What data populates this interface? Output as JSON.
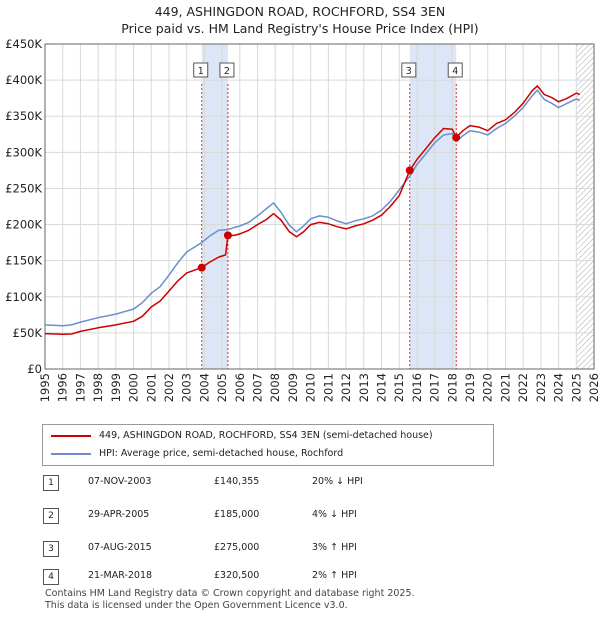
{
  "title_line1": "449, ASHINGDON ROAD, ROCHFORD, SS4 3EN",
  "title_line2": "Price paid vs. HM Land Registry's House Price Index (HPI)",
  "colors": {
    "price_line": "#cc0000",
    "hpi_line": "#6a8fce",
    "shade": "#dde6f7",
    "grid": "#d9d9d9",
    "marker": "#cc0000"
  },
  "chart_data": {
    "type": "line",
    "xlim": [
      1995,
      2026
    ],
    "ylim": [
      0,
      450000
    ],
    "y_ticks": [
      {
        "value": 0,
        "label": "£0"
      },
      {
        "value": 50000,
        "label": "£50K"
      },
      {
        "value": 100000,
        "label": "£100K"
      },
      {
        "value": 150000,
        "label": "£150K"
      },
      {
        "value": 200000,
        "label": "£200K"
      },
      {
        "value": 250000,
        "label": "£250K"
      },
      {
        "value": 300000,
        "label": "£300K"
      },
      {
        "value": 350000,
        "label": "£350K"
      },
      {
        "value": 400000,
        "label": "£400K"
      },
      {
        "value": 450000,
        "label": "£450K"
      }
    ],
    "x_ticks": [
      1995,
      1996,
      1997,
      1998,
      1999,
      2000,
      2001,
      2002,
      2003,
      2004,
      2005,
      2006,
      2007,
      2008,
      2009,
      2010,
      2011,
      2012,
      2013,
      2014,
      2015,
      2016,
      2017,
      2018,
      2019,
      2020,
      2021,
      2022,
      2023,
      2024,
      2025,
      2026
    ],
    "shaded_ranges": [
      [
        2003.85,
        2005.33
      ],
      [
        2015.6,
        2018.22
      ]
    ],
    "hatched_from": 2025.0,
    "series": [
      {
        "name": "449, ASHINGDON ROAD, ROCHFORD, SS4 3EN (semi-detached house)",
        "points": [
          [
            1995,
            49000
          ],
          [
            1996,
            48000
          ],
          [
            1996.5,
            48500
          ],
          [
            1997,
            52000
          ],
          [
            1998,
            57000
          ],
          [
            1999,
            61000
          ],
          [
            2000,
            66000
          ],
          [
            2000.5,
            73000
          ],
          [
            2001,
            86000
          ],
          [
            2001.5,
            94000
          ],
          [
            2002,
            108000
          ],
          [
            2002.5,
            122000
          ],
          [
            2003,
            133000
          ],
          [
            2003.85,
            140355
          ],
          [
            2004.3,
            148000
          ],
          [
            2004.8,
            155000
          ],
          [
            2005.2,
            158000
          ],
          [
            2005.33,
            185000
          ],
          [
            2005.7,
            185000
          ],
          [
            2006,
            187000
          ],
          [
            2006.5,
            192000
          ],
          [
            2007,
            200000
          ],
          [
            2007.5,
            207000
          ],
          [
            2007.9,
            215000
          ],
          [
            2008.3,
            207000
          ],
          [
            2008.8,
            190000
          ],
          [
            2009.2,
            183000
          ],
          [
            2009.6,
            190000
          ],
          [
            2010,
            200000
          ],
          [
            2010.5,
            203000
          ],
          [
            2011,
            201000
          ],
          [
            2011.5,
            197000
          ],
          [
            2012,
            194000
          ],
          [
            2012.5,
            198000
          ],
          [
            2013,
            201000
          ],
          [
            2013.5,
            206000
          ],
          [
            2014,
            213000
          ],
          [
            2014.5,
            225000
          ],
          [
            2015,
            240000
          ],
          [
            2015.6,
            275000
          ],
          [
            2016,
            290000
          ],
          [
            2016.5,
            305000
          ],
          [
            2017,
            320000
          ],
          [
            2017.5,
            333000
          ],
          [
            2018,
            332000
          ],
          [
            2018.22,
            320500
          ],
          [
            2018.6,
            330000
          ],
          [
            2019,
            337000
          ],
          [
            2019.5,
            335000
          ],
          [
            2020,
            330000
          ],
          [
            2020.5,
            340000
          ],
          [
            2021,
            345000
          ],
          [
            2021.5,
            355000
          ],
          [
            2022,
            368000
          ],
          [
            2022.5,
            385000
          ],
          [
            2022.8,
            392000
          ],
          [
            2023.2,
            380000
          ],
          [
            2023.6,
            376000
          ],
          [
            2024,
            370000
          ],
          [
            2024.5,
            375000
          ],
          [
            2025,
            382000
          ],
          [
            2025.2,
            380000
          ]
        ]
      },
      {
        "name": "HPI: Average price, semi-detached house, Rochford",
        "points": [
          [
            1995,
            61000
          ],
          [
            1996,
            60000
          ],
          [
            1996.5,
            61000
          ],
          [
            1997,
            65000
          ],
          [
            1998,
            71000
          ],
          [
            1999,
            76000
          ],
          [
            2000,
            83000
          ],
          [
            2000.5,
            92000
          ],
          [
            2001,
            105000
          ],
          [
            2001.5,
            114000
          ],
          [
            2002,
            130000
          ],
          [
            2002.5,
            147000
          ],
          [
            2003,
            162000
          ],
          [
            2003.85,
            175000
          ],
          [
            2004.3,
            184000
          ],
          [
            2004.8,
            192000
          ],
          [
            2005.33,
            193000
          ],
          [
            2005.7,
            196000
          ],
          [
            2006,
            198000
          ],
          [
            2006.5,
            203000
          ],
          [
            2007,
            212000
          ],
          [
            2007.5,
            222000
          ],
          [
            2007.9,
            230000
          ],
          [
            2008.3,
            218000
          ],
          [
            2008.8,
            199000
          ],
          [
            2009.2,
            190000
          ],
          [
            2009.6,
            198000
          ],
          [
            2010,
            208000
          ],
          [
            2010.5,
            212000
          ],
          [
            2011,
            210000
          ],
          [
            2011.5,
            205000
          ],
          [
            2012,
            201000
          ],
          [
            2012.5,
            205000
          ],
          [
            2013,
            208000
          ],
          [
            2013.5,
            212000
          ],
          [
            2014,
            220000
          ],
          [
            2014.5,
            232000
          ],
          [
            2015,
            248000
          ],
          [
            2015.6,
            267000
          ],
          [
            2016,
            283000
          ],
          [
            2016.5,
            298000
          ],
          [
            2017,
            313000
          ],
          [
            2017.5,
            324000
          ],
          [
            2018,
            326000
          ],
          [
            2018.22,
            315000
          ],
          [
            2018.6,
            323000
          ],
          [
            2019,
            330000
          ],
          [
            2019.5,
            328000
          ],
          [
            2020,
            324000
          ],
          [
            2020.5,
            333000
          ],
          [
            2021,
            340000
          ],
          [
            2021.5,
            350000
          ],
          [
            2022,
            362000
          ],
          [
            2022.5,
            378000
          ],
          [
            2022.8,
            386000
          ],
          [
            2023.2,
            373000
          ],
          [
            2023.6,
            368000
          ],
          [
            2024,
            362000
          ],
          [
            2024.5,
            368000
          ],
          [
            2025,
            374000
          ],
          [
            2025.2,
            372000
          ]
        ]
      }
    ],
    "annotations": [
      {
        "num": "1",
        "x": 2003.85,
        "y": 140355
      },
      {
        "num": "2",
        "x": 2005.33,
        "y": 185000
      },
      {
        "num": "3",
        "x": 2015.6,
        "y": 275000
      },
      {
        "num": "4",
        "x": 2018.22,
        "y": 320500
      }
    ]
  },
  "legend": {
    "item1": "449, ASHINGDON ROAD, ROCHFORD, SS4 3EN (semi-detached house)",
    "item2": "HPI: Average price, semi-detached house, Rochford"
  },
  "transactions": [
    {
      "num": "1",
      "date": "07-NOV-2003",
      "price": "£140,355",
      "hpi": "20% ↓ HPI"
    },
    {
      "num": "2",
      "date": "29-APR-2005",
      "price": "£185,000",
      "hpi": "4% ↓ HPI"
    },
    {
      "num": "3",
      "date": "07-AUG-2015",
      "price": "£275,000",
      "hpi": "3% ↑ HPI"
    },
    {
      "num": "4",
      "date": "21-MAR-2018",
      "price": "£320,500",
      "hpi": "2% ↑ HPI"
    }
  ],
  "footer_line1": "Contains HM Land Registry data © Crown copyright and database right 2025.",
  "footer_line2": "This data is licensed under the Open Government Licence v3.0."
}
